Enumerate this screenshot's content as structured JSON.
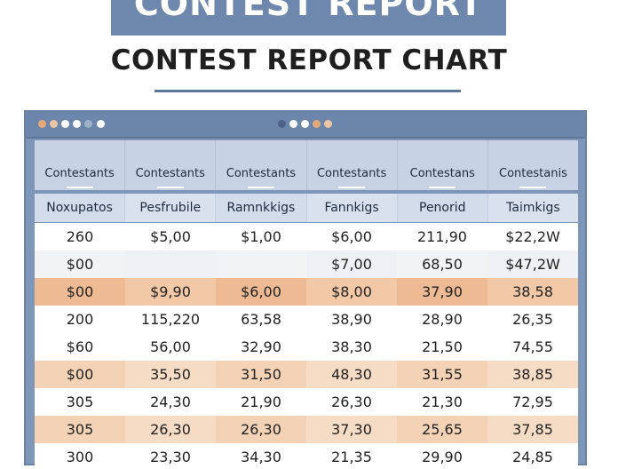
{
  "banner": {
    "text": "CONTEST REPORT"
  },
  "title": "CONTEST REPORT CHART",
  "window_dots": {
    "left": [
      "#e8a97a",
      "#edc7a5",
      "#ffffff",
      "#ffffff",
      "#9fb0c9"
    ],
    "right": [
      "#ffffff",
      "#4f6288",
      "#ffffff",
      "#ffffff",
      "#e8a97a",
      "#edc7a5"
    ]
  },
  "table": {
    "headers": [
      "Contestants",
      "Contestants",
      "Contestants",
      "Contestants",
      "Contestans",
      "Contestanis"
    ],
    "subheaders": [
      "Noxupatos",
      "Pesfrubile",
      "Ramnkkigs",
      "Fannkigs",
      "Penorid",
      "Taimkigs"
    ],
    "rows": [
      {
        "style": "white",
        "cells": [
          "260",
          "$5,00",
          "$1,00",
          "$6,00",
          "211,90",
          "$22,2W"
        ]
      },
      {
        "style": "gray",
        "cells": [
          "$00",
          "",
          "",
          "$7,00",
          "68,50",
          "$47,2W"
        ]
      },
      {
        "style": "orange",
        "cells": [
          "$00",
          "$9,90",
          "$6,00",
          "$8,00",
          "37,90",
          "38,58"
        ]
      },
      {
        "style": "white",
        "cells": [
          "200",
          "115,220",
          "63,58",
          "38,90",
          "28,90",
          "26,35"
        ]
      },
      {
        "style": "white",
        "cells": [
          "$60",
          "56,00",
          "32,90",
          "38,30",
          "21,50",
          "74,55"
        ]
      },
      {
        "style": "peach",
        "cells": [
          "$00",
          "35,50",
          "31,50",
          "48,30",
          "31,55",
          "38,85"
        ]
      },
      {
        "style": "white",
        "cells": [
          "305",
          "24,30",
          "21,90",
          "26,30",
          "21,30",
          "72,95"
        ]
      },
      {
        "style": "peach",
        "cells": [
          "305",
          "26,30",
          "26,30",
          "37,30",
          "25,65",
          "37,85"
        ]
      },
      {
        "style": "white",
        "cells": [
          "300",
          "23,30",
          "34,30",
          "21,35",
          "29,90",
          "24,85"
        ]
      }
    ]
  }
}
